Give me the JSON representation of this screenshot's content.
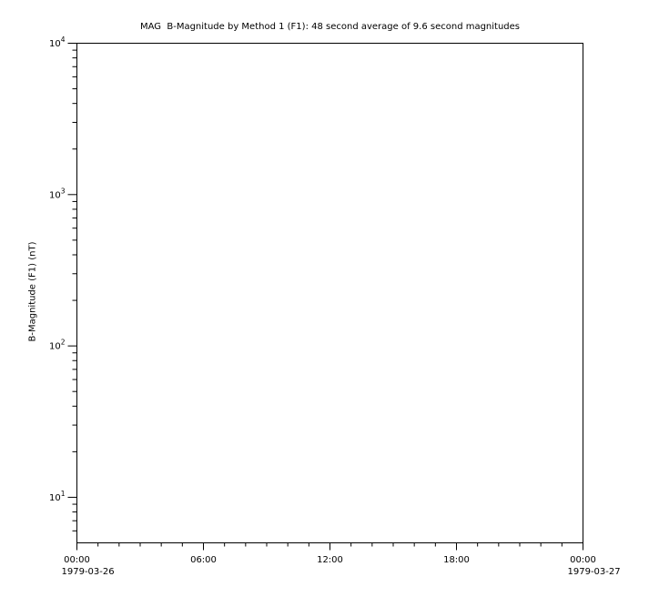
{
  "page": {
    "background_color": "#ffffff",
    "line_color": "#000000"
  },
  "chart_data": {
    "type": "line",
    "title": "MAG  B-Magnitude by Method 1 (F1): 48 second average of 9.6 second magnitudes",
    "ylabel": "B-Magnitude (F1) (nT)",
    "xlabel": "",
    "y_scale": "log",
    "ylim": [
      5,
      10000
    ],
    "y_major_ticks": [
      {
        "value": 10,
        "base": "10",
        "exp": "1"
      },
      {
        "value": 100,
        "base": "10",
        "exp": "2"
      },
      {
        "value": 1000,
        "base": "10",
        "exp": "3"
      },
      {
        "value": 10000,
        "base": "10",
        "exp": "4"
      }
    ],
    "x_scale": "time",
    "x_range_hours": [
      0,
      24
    ],
    "x_minor_tick_interval_hours": 1,
    "x_major_ticks": [
      {
        "hour": 0,
        "label": "00:00",
        "date": "1979-03-26"
      },
      {
        "hour": 6,
        "label": "06:00",
        "date": ""
      },
      {
        "hour": 12,
        "label": "12:00",
        "date": ""
      },
      {
        "hour": 18,
        "label": "18:00",
        "date": ""
      },
      {
        "hour": 24,
        "label": "00:00",
        "date": "1979-03-27"
      }
    ],
    "grid": false,
    "legend": null,
    "series": [
      {
        "name": "B-Magnitude (F1)",
        "points": []
      }
    ]
  }
}
